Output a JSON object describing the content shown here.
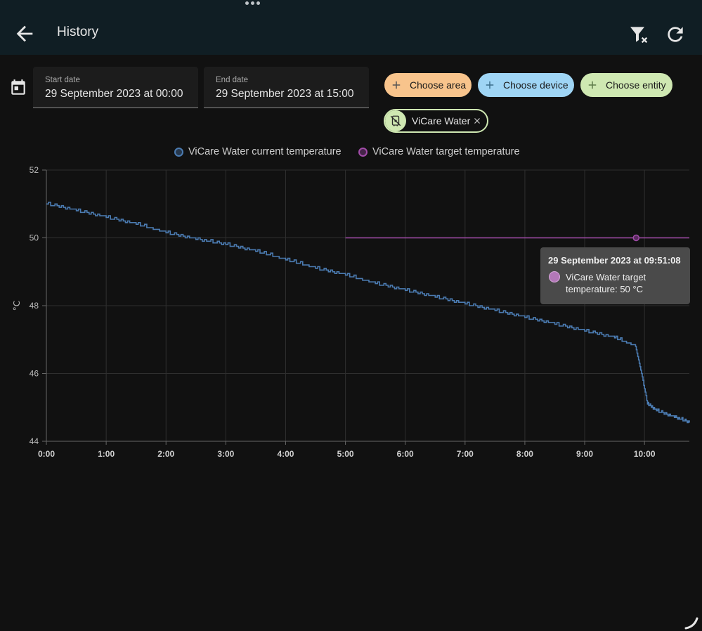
{
  "header": {
    "title": "History",
    "icons": [
      "arrow-left-icon",
      "filter-remove-icon",
      "refresh-icon"
    ]
  },
  "date_range": {
    "start_label": "Start date",
    "start_value": "29 September 2023 at 00:00",
    "end_label": "End date",
    "end_value": "29 September 2023 at 15:00"
  },
  "chips": {
    "area": "Choose area",
    "device": "Choose device",
    "entity": "Choose entity",
    "selected": "ViCare Water"
  },
  "legend": {
    "series1": "ViCare Water current temperature",
    "series2": "ViCare Water target temperature"
  },
  "tooltip": {
    "title": "29 September 2023 at 09:51:08",
    "label": "ViCare Water target temperature: 50 °C"
  },
  "colors": {
    "background": "#111111",
    "header": "#101e24",
    "series1": "#4b7bb1",
    "series2": "#a24ca9",
    "grid": "#2f2f2f"
  },
  "chart_data": {
    "type": "line",
    "title": "",
    "xlabel": "",
    "ylabel": "°C",
    "xlim": [
      0,
      10.75
    ],
    "ylim": [
      44,
      52
    ],
    "x_ticks": [
      0,
      1,
      2,
      3,
      4,
      5,
      6,
      7,
      8,
      9,
      10
    ],
    "x_tick_labels": [
      "0:00",
      "1:00",
      "2:00",
      "3:00",
      "4:00",
      "5:00",
      "6:00",
      "7:00",
      "8:00",
      "9:00",
      "10:00"
    ],
    "y_ticks": [
      44,
      46,
      48,
      50,
      52
    ],
    "y_tick_labels": [
      "44",
      "46",
      "48",
      "50",
      "52"
    ],
    "grid": true,
    "legend_position": "top",
    "series": [
      {
        "name": "ViCare Water current temperature",
        "step": true,
        "x": [
          0,
          0.5,
          1,
          1.5,
          2,
          2.5,
          3,
          3.5,
          4,
          4.5,
          5,
          5.5,
          6,
          6.5,
          7,
          7.5,
          8,
          8.5,
          9,
          9.5,
          9.85,
          9.95,
          10.05,
          10.2,
          10.5,
          10.75
        ],
        "y": [
          51.0,
          50.8,
          50.6,
          50.4,
          50.15,
          49.95,
          49.8,
          49.6,
          49.35,
          49.1,
          48.9,
          48.65,
          48.45,
          48.25,
          48.05,
          47.85,
          47.65,
          47.45,
          47.25,
          47.05,
          46.8,
          46.0,
          45.1,
          44.9,
          44.7,
          44.55
        ]
      },
      {
        "name": "ViCare Water target temperature",
        "step": false,
        "x": [
          5.0,
          10.75
        ],
        "y": [
          50,
          50
        ],
        "highlight_point": {
          "x": 9.86,
          "y": 50
        }
      }
    ]
  }
}
